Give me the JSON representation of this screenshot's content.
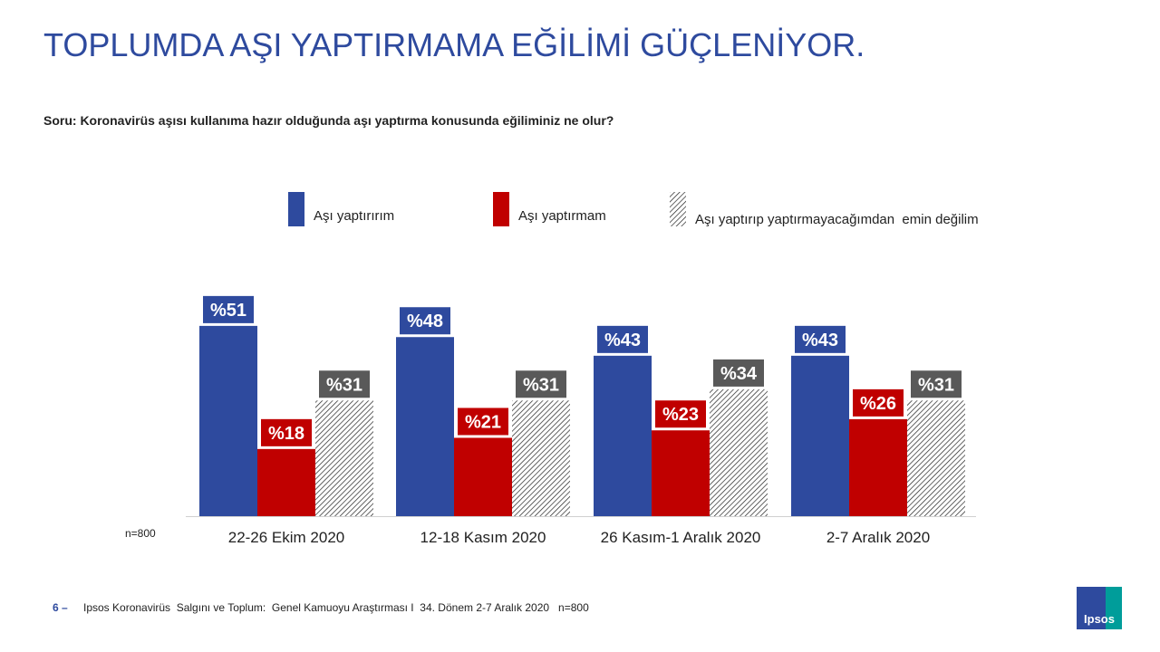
{
  "chart_data": {
    "type": "bar",
    "title": "TOPLUMDA AŞI YAPTIRMAMA EĞİLİMİ GÜÇLENİYOR.",
    "subtitle": "Soru: Koronavirüs aşısı kullanıma hazır olduğunda aşı yaptırma konusunda eğiliminiz ne olur?",
    "note": "n=800",
    "categories": [
      "22-26 Ekim 2020",
      "12-18 Kasım 2020",
      "26 Kasım-1 Aralık 2020",
      "2-7 Aralık 2020"
    ],
    "series": [
      {
        "name": "Aşı yaptırırım",
        "color": "#2e4a9e",
        "values": [
          51,
          48,
          43,
          43
        ],
        "value_labels": [
          "%51",
          "%48",
          "%43",
          "%43"
        ]
      },
      {
        "name": "Aşı yaptırmam",
        "color": "#c00000",
        "values": [
          18,
          21,
          23,
          26
        ],
        "value_labels": [
          "%18",
          "%21",
          "%23",
          "%26"
        ]
      },
      {
        "name": "Aşı yaptırıp yaptırmayacağımdan  emin değilim",
        "color": "hatch",
        "values": [
          31,
          31,
          34,
          31
        ],
        "value_labels": [
          "%31",
          "%31",
          "%34",
          "%31"
        ]
      }
    ],
    "legend": "top"
  },
  "footer": {
    "page": "6 –",
    "text": "Ipsos Koronavirüs  Salgını ve Toplum:  Genel Kamuoyu Araştırması I  34. Dönem 2-7 Aralık 2020   n=800",
    "logo": "Ipsos"
  }
}
